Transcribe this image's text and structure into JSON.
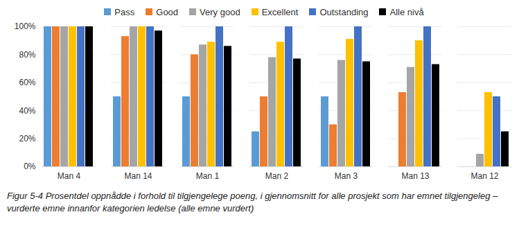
{
  "chart_data": {
    "type": "bar",
    "caption": "Figur 5-4 Prosentdel oppnådde i forhold til tilgjengelege poeng, i gjennomsnitt for alle prosjekt som har emnet tilgjengeleg – vurderte emne innanfor kategorien ledelse (alle emne vurdert)",
    "categories": [
      "Man 4",
      "Man 14",
      "Man 1",
      "Man 2",
      "Man 3",
      "Man 13",
      "Man 12"
    ],
    "series": [
      {
        "name": "Pass",
        "color": "#5B9BD5",
        "values": [
          100,
          50,
          50,
          25,
          50,
          null,
          null
        ]
      },
      {
        "name": "Good",
        "color": "#ED7D31",
        "values": [
          100,
          93,
          80,
          50,
          30,
          53,
          null
        ]
      },
      {
        "name": "Very good",
        "color": "#A5A5A5",
        "values": [
          100,
          100,
          87,
          78,
          76,
          71,
          9
        ]
      },
      {
        "name": "Excellent",
        "color": "#FFC000",
        "values": [
          100,
          100,
          89,
          89,
          91,
          90,
          53
        ]
      },
      {
        "name": "Outstanding",
        "color": "#4472C4",
        "values": [
          100,
          100,
          100,
          100,
          100,
          100,
          50
        ]
      },
      {
        "name": "Alle nivå",
        "color": "#000000",
        "values": [
          100,
          97,
          86,
          77,
          75,
          73,
          25
        ]
      }
    ],
    "ylim": [
      0,
      100
    ],
    "yticks": [
      {
        "value": 0,
        "label": "0%"
      },
      {
        "value": 20,
        "label": "20%"
      },
      {
        "value": 40,
        "label": "40%"
      },
      {
        "value": 60,
        "label": "60%"
      },
      {
        "value": 80,
        "label": "80%"
      },
      {
        "value": 100,
        "label": "100%"
      }
    ],
    "grid": true,
    "legend": "top"
  }
}
